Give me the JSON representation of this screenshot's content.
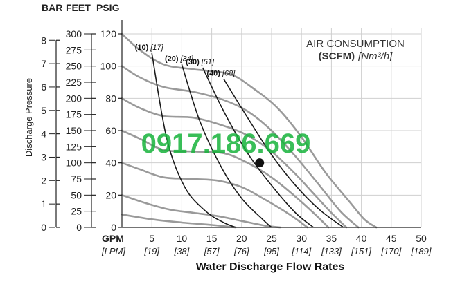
{
  "chart_data": {
    "type": "line",
    "x_axis": {
      "title": "Water Discharge Flow Rates",
      "unit_label": "GPM",
      "alt_unit_label": "[LPM]",
      "range": [
        0,
        50
      ],
      "ticks": [
        0,
        5,
        10,
        15,
        20,
        25,
        30,
        35,
        40,
        45,
        50
      ],
      "alt_ticks": [
        "[19]",
        "[38]",
        "[57]",
        "[76]",
        "[95]",
        "[114]",
        "[133]",
        "[151]",
        "[170]",
        "[189]"
      ]
    },
    "y_axis": {
      "title": "Discharge Pressure",
      "range_psig": [
        0,
        120
      ],
      "psig_ticks": [
        0,
        20,
        40,
        60,
        80,
        100,
        120
      ],
      "feet_header": "FEET",
      "feet_ticks": [
        0,
        25,
        50,
        75,
        100,
        125,
        150,
        175,
        200,
        225,
        250,
        275,
        300
      ],
      "bar_header": "BAR",
      "bar_ticks": [
        0,
        1,
        2,
        3,
        4,
        5,
        6,
        7,
        8
      ],
      "psig_header": "PSIG"
    },
    "legend": {
      "line1": "AIR CONSUMPTION",
      "line2_bold": "(SCFM)",
      "line2_italic": "[Nm³/h]",
      "placement": "top-right"
    },
    "air_consumption_curves": [
      {
        "label": "(10)",
        "alt_label": "[17]",
        "points": [
          [
            5.0,
            108
          ],
          [
            7.5,
            55
          ],
          [
            10.5,
            25
          ],
          [
            14,
            10
          ],
          [
            17,
            3
          ],
          [
            19,
            0
          ]
        ]
      },
      {
        "label": "(20)",
        "alt_label": "[34]",
        "points": [
          [
            10.0,
            101
          ],
          [
            13,
            66
          ],
          [
            16.5,
            38
          ],
          [
            20,
            18
          ],
          [
            23.5,
            5
          ],
          [
            25,
            0
          ]
        ]
      },
      {
        "label": "(30)",
        "alt_label": "[51]",
        "points": [
          [
            13.5,
            99
          ],
          [
            17,
            72
          ],
          [
            21,
            46
          ],
          [
            25,
            26
          ],
          [
            29,
            9
          ],
          [
            32,
            0
          ]
        ]
      },
      {
        "label": "(40)",
        "alt_label": "[68]",
        "points": [
          [
            17.0,
            92
          ],
          [
            21,
            68
          ],
          [
            25,
            45
          ],
          [
            29,
            26
          ],
          [
            33,
            11
          ],
          [
            37,
            0
          ]
        ]
      }
    ],
    "outlet_pressure_curves": [
      {
        "inlet_psig": 120,
        "points": [
          [
            0,
            120
          ],
          [
            3,
            110
          ],
          [
            7,
            101
          ],
          [
            12,
            98
          ],
          [
            18,
            95
          ],
          [
            22,
            86
          ],
          [
            26,
            74
          ],
          [
            30,
            56
          ],
          [
            34,
            34
          ],
          [
            38,
            16
          ],
          [
            40.5,
            5
          ],
          [
            42.5,
            0
          ]
        ]
      },
      {
        "inlet_psig": 100,
        "points": [
          [
            0,
            100
          ],
          [
            3,
            93
          ],
          [
            7,
            87
          ],
          [
            12,
            84
          ],
          [
            17,
            79
          ],
          [
            21,
            72
          ],
          [
            25,
            60
          ],
          [
            29,
            44
          ],
          [
            33,
            26
          ],
          [
            36.5,
            10
          ],
          [
            39.5,
            0
          ]
        ]
      },
      {
        "inlet_psig": 80,
        "points": [
          [
            0,
            80
          ],
          [
            3,
            74
          ],
          [
            7,
            69
          ],
          [
            12,
            68
          ],
          [
            17,
            63
          ],
          [
            21,
            57
          ],
          [
            25,
            47
          ],
          [
            29,
            33
          ],
          [
            32,
            21
          ],
          [
            35,
            9
          ],
          [
            37.5,
            0
          ]
        ]
      },
      {
        "inlet_psig": 60,
        "points": [
          [
            0,
            60
          ],
          [
            3,
            55
          ],
          [
            7,
            48
          ],
          [
            12,
            47
          ],
          [
            17,
            46
          ],
          [
            21,
            40
          ],
          [
            25,
            31
          ],
          [
            29,
            19
          ],
          [
            32,
            9
          ],
          [
            34.5,
            0
          ]
        ]
      },
      {
        "inlet_psig": 40,
        "points": [
          [
            0,
            40
          ],
          [
            3,
            36
          ],
          [
            7,
            31
          ],
          [
            12,
            30
          ],
          [
            16,
            29
          ],
          [
            20,
            25
          ],
          [
            24,
            17
          ],
          [
            28,
            8
          ],
          [
            31,
            0
          ]
        ]
      },
      {
        "inlet_psig": 20,
        "points": [
          [
            0,
            20
          ],
          [
            4,
            15
          ],
          [
            8,
            11
          ],
          [
            12,
            9
          ],
          [
            16,
            7
          ],
          [
            20,
            4
          ],
          [
            24,
            1
          ],
          [
            26.5,
            0
          ]
        ]
      },
      {
        "inlet_psig": 0,
        "points": [
          [
            0,
            8
          ],
          [
            5,
            5
          ],
          [
            10,
            3
          ],
          [
            15,
            1.5
          ],
          [
            19,
            0
          ]
        ]
      }
    ],
    "marker_point": {
      "x": 23,
      "y": 40
    },
    "grid": true,
    "overlay_text": "0917.186.669"
  }
}
